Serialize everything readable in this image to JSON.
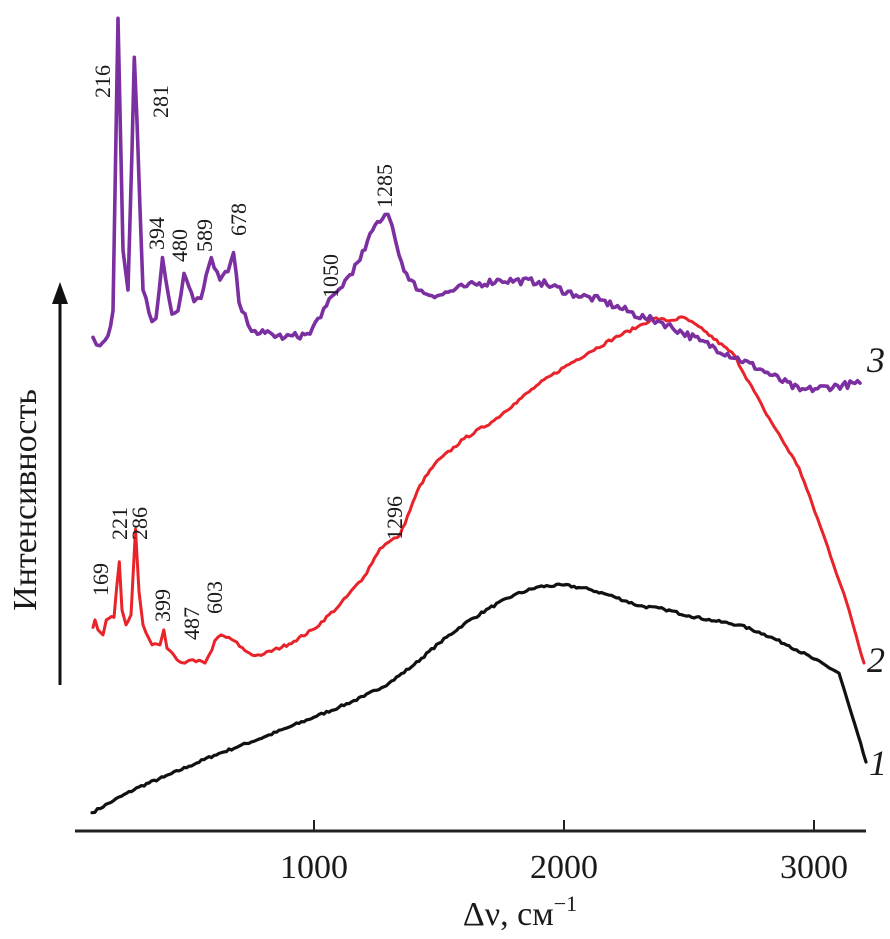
{
  "chart_data": {
    "type": "line",
    "title": "",
    "xlabel": "Δν, см",
    "xlabel_superscript": "−1",
    "ylabel": "Интенсивность",
    "y_units": "arbitrary units (curves vertically offset)",
    "xlim": [
      0,
      3250
    ],
    "ylim": [
      0,
      100
    ],
    "x_ticks": [
      1000,
      2000,
      3000
    ],
    "x_tick_labels": [
      "1000",
      "2000",
      "3000"
    ],
    "grid": false,
    "legend": "curve numbers at right end of each curve",
    "series": [
      {
        "name": "1",
        "color": "#111111",
        "x": [
          112,
          200,
          300,
          400,
          500,
          600,
          700,
          800,
          900,
          1000,
          1100,
          1200,
          1300,
          1400,
          1500,
          1600,
          1700,
          1800,
          1900,
          2000,
          2100,
          2200,
          2300,
          2400,
          2500,
          2600,
          2700,
          2800,
          2900,
          3000,
          3100,
          3208
        ],
        "y": [
          2.2,
          3.7,
          5.3,
          6.5,
          7.8,
          9.1,
          10.2,
          11.3,
          12.5,
          13.7,
          14.9,
          16.2,
          17.8,
          20.0,
          22.6,
          24.9,
          26.8,
          28.4,
          29.4,
          29.6,
          29.1,
          28.2,
          27.1,
          26.7,
          25.9,
          25.3,
          24.8,
          23.7,
          22.3,
          20.7,
          19.0,
          8.3
        ]
      },
      {
        "name": "2",
        "color": "#E8232A",
        "x": [
          116,
          124,
          136,
          156,
          169,
          180,
          200,
          221,
          232,
          248,
          268,
          286,
          300,
          316,
          352,
          384,
          399,
          412,
          452,
          484,
          487,
          516,
          564,
          592,
          603,
          628,
          680,
          724,
          764,
          800,
          900,
          1000,
          1100,
          1200,
          1264,
          1296,
          1344,
          1424,
          1484,
          1600,
          1720,
          1800,
          1900,
          2000,
          2100,
          2200,
          2296,
          2360,
          2420,
          2480,
          2560,
          2680,
          2800,
          2940,
          3056,
          3140,
          3200
        ],
        "y": [
          24.5,
          25.4,
          24.2,
          23.6,
          25.4,
          25.6,
          25.7,
          32.4,
          26.6,
          24.8,
          26.0,
          36.3,
          28.8,
          24.8,
          22.4,
          22.4,
          24.2,
          22.0,
          20.6,
          20.2,
          20.3,
          20.6,
          20.2,
          21.8,
          22.9,
          23.6,
          22.9,
          21.7,
          21.1,
          21.3,
          22.5,
          24.3,
          27.1,
          30.6,
          34.0,
          34.7,
          35.6,
          41.6,
          44.2,
          47.2,
          49.4,
          51.4,
          53.8,
          55.8,
          57.6,
          59.3,
          60.7,
          61.7,
          61.4,
          61.8,
          60.2,
          57.3,
          50.7,
          43.7,
          34.1,
          26.6,
          20.2
        ]
      },
      {
        "name": "3",
        "color": "#7B2FA0",
        "x": [
          116,
          144,
          176,
          196,
          216,
          236,
          256,
          272,
          281,
          292,
          316,
          352,
          368,
          394,
          432,
          456,
          480,
          520,
          548,
          589,
          624,
          656,
          678,
          700,
          736,
          764,
          804,
          884,
          984,
          1016,
          1050,
          1104,
          1184,
          1244,
          1284,
          1296,
          1312,
          1340,
          1380,
          1440,
          1504,
          1600,
          1744,
          1900,
          2048,
          2144,
          2324,
          2384,
          2544,
          2784,
          2944,
          3184
        ],
        "y": [
          59.4,
          58.4,
          59.6,
          62.6,
          97.8,
          69.9,
          65.1,
          81.9,
          93.1,
          85.4,
          65.1,
          61.3,
          61.7,
          69.0,
          62.2,
          62.6,
          67.1,
          63.7,
          64.1,
          69.0,
          66.3,
          67.3,
          69.6,
          63.6,
          60.9,
          60.2,
          59.9,
          59.4,
          59.8,
          61.7,
          63.2,
          65.3,
          68.7,
          72.9,
          74.2,
          74.2,
          72.9,
          69.3,
          66.3,
          64.7,
          64.5,
          65.5,
          66.3,
          66.1,
          64.5,
          63.9,
          61.7,
          61.3,
          59.0,
          55.6,
          53.0,
          53.9
        ]
      }
    ],
    "annotations": [
      {
        "series": "3",
        "text": "216",
        "x": 216
      },
      {
        "series": "3",
        "text": "281",
        "x": 281
      },
      {
        "series": "3",
        "text": "394",
        "x": 394
      },
      {
        "series": "3",
        "text": "480",
        "x": 480
      },
      {
        "series": "3",
        "text": "589",
        "x": 589
      },
      {
        "series": "3",
        "text": "678",
        "x": 678
      },
      {
        "series": "3",
        "text": "1050",
        "x": 1050
      },
      {
        "series": "3",
        "text": "1285",
        "x": 1285
      },
      {
        "series": "2",
        "text": "169",
        "x": 169
      },
      {
        "series": "2",
        "text": "221",
        "x": 221
      },
      {
        "series": "2",
        "text": "286",
        "x": 286
      },
      {
        "series": "2",
        "text": "399",
        "x": 399
      },
      {
        "series": "2",
        "text": "487",
        "x": 487
      },
      {
        "series": "2",
        "text": "603",
        "x": 603
      },
      {
        "series": "2",
        "text": "1296",
        "x": 1296
      }
    ]
  }
}
